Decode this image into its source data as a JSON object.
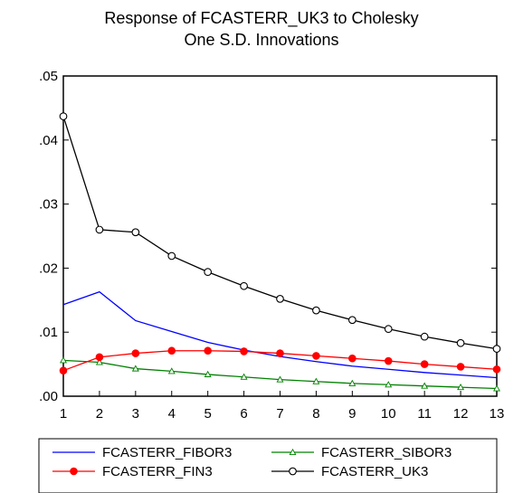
{
  "chart_data": {
    "type": "line",
    "title": "Response of FCASTERR_UK3 to Cholesky",
    "subtitle": "One S.D. Innovations",
    "x": [
      1,
      2,
      3,
      4,
      5,
      6,
      7,
      8,
      9,
      10,
      11,
      12,
      13
    ],
    "x_tick_labels": [
      "1",
      "2",
      "3",
      "4",
      "5",
      "6",
      "7",
      "8",
      "9",
      "10",
      "11",
      "12",
      "13"
    ],
    "y_tick_labels": [
      ".00",
      ".01",
      ".02",
      ".03",
      ".04",
      ".05"
    ],
    "ylim": [
      0,
      0.05
    ],
    "grid": false,
    "legend_position": "bottom",
    "series": [
      {
        "name": "FCASTERR_FIBOR3",
        "color": "#0000ff",
        "marker": "none",
        "values": [
          0.0143,
          0.0163,
          0.0118,
          0.0101,
          0.0084,
          0.0072,
          0.0062,
          0.0054,
          0.0047,
          0.0042,
          0.0037,
          0.0033,
          0.0029
        ]
      },
      {
        "name": "FCASTERR_SIBOR3",
        "color": "#008000",
        "marker": "triangle",
        "values": [
          0.0056,
          0.0053,
          0.0043,
          0.0039,
          0.0034,
          0.003,
          0.0026,
          0.0023,
          0.002,
          0.0018,
          0.0016,
          0.0014,
          0.0012
        ]
      },
      {
        "name": "FCASTERR_FIN3",
        "color": "#ff0000",
        "marker": "filled-circle",
        "values": [
          0.004,
          0.0061,
          0.0067,
          0.0071,
          0.0071,
          0.007,
          0.0067,
          0.0063,
          0.0059,
          0.0055,
          0.005,
          0.0046,
          0.0042
        ]
      },
      {
        "name": "FCASTERR_UK3",
        "color": "#000000",
        "marker": "open-circle",
        "values": [
          0.0437,
          0.026,
          0.0256,
          0.0219,
          0.0194,
          0.0172,
          0.0152,
          0.0134,
          0.0119,
          0.0105,
          0.0093,
          0.0083,
          0.0074
        ]
      }
    ]
  }
}
